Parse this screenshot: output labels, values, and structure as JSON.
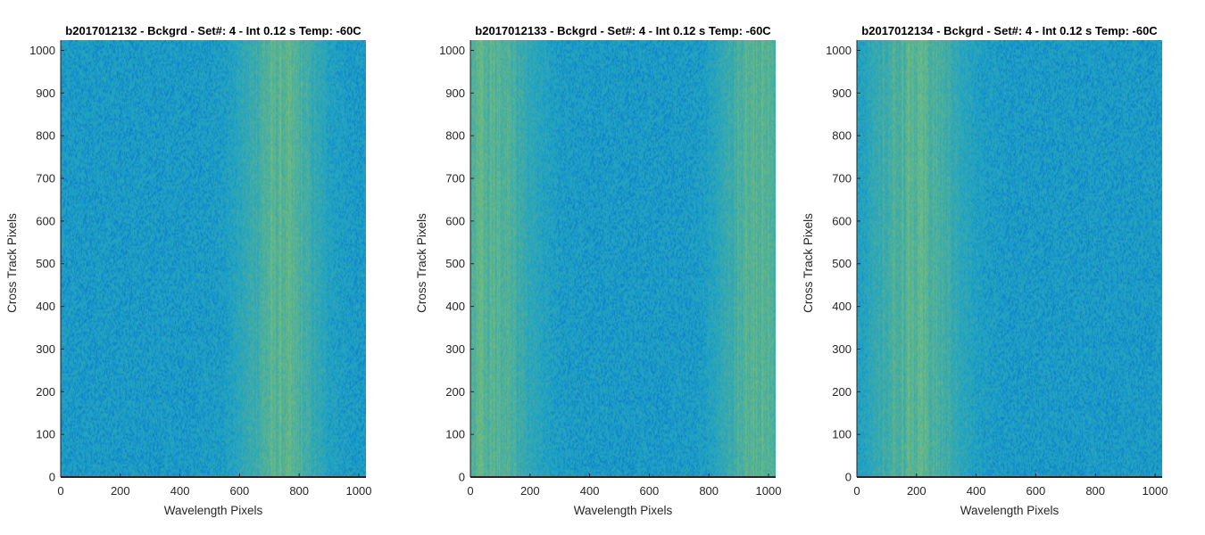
{
  "chart_data": [
    {
      "type": "heatmap",
      "title": "b2017012132 - Bckgrd - Set#: 4 - Int 0.12 s Temp: -60C",
      "xlabel": "Wavelength Pixels",
      "ylabel": "Cross Track Pixels",
      "xlim": [
        0,
        1024
      ],
      "ylim": [
        0,
        1024
      ],
      "xticks": [
        0,
        200,
        400,
        600,
        800,
        1000
      ],
      "yticks": [
        0,
        100,
        200,
        300,
        400,
        500,
        600,
        700,
        800,
        900,
        1000
      ],
      "bright_band_center": 740,
      "bright_band_width": 120
    },
    {
      "type": "heatmap",
      "title": "b2017012133 - Bckgrd - Set#: 4 - Int 0.12 s Temp: -60C",
      "xlabel": "Wavelength Pixels",
      "ylabel": "Cross Track Pixels",
      "xlim": [
        0,
        1024
      ],
      "ylim": [
        0,
        1024
      ],
      "xticks": [
        0,
        200,
        400,
        600,
        800,
        1000
      ],
      "yticks": [
        0,
        100,
        200,
        300,
        400,
        500,
        600,
        700,
        800,
        900,
        1000
      ],
      "bright_band_center": 60,
      "bright_band_width": 140,
      "bright_band_center_2": 960,
      "bright_band_width_2": 110
    },
    {
      "type": "heatmap",
      "title": "b2017012134 - Bckgrd - Set#: 4 - Int 0.12 s Temp: -60C",
      "xlabel": "Wavelength Pixels",
      "ylabel": "Cross Track Pixels",
      "xlim": [
        0,
        1024
      ],
      "ylim": [
        0,
        1024
      ],
      "xticks": [
        0,
        200,
        400,
        600,
        800,
        1000
      ],
      "yticks": [
        0,
        100,
        200,
        300,
        400,
        500,
        600,
        700,
        800,
        900,
        1000
      ],
      "bright_band_center": 200,
      "bright_band_width": 140
    }
  ],
  "colors": {
    "base": "#1aa0c8",
    "dark": "#0a78cc",
    "bright": "#9cc85a",
    "axis": "#262626"
  }
}
